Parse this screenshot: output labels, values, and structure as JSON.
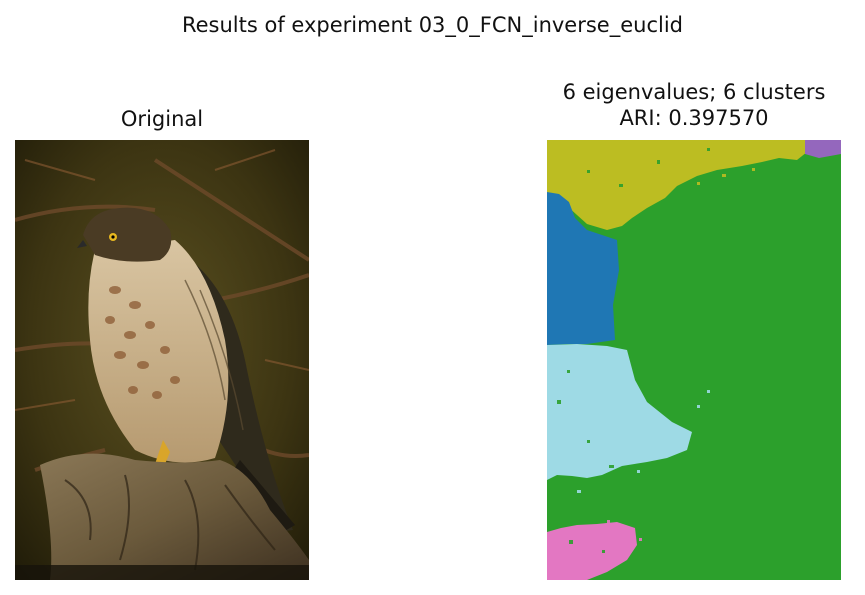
{
  "figure": {
    "suptitle": "Results of experiment 03_0_FCN_inverse_euclid"
  },
  "left_panel": {
    "title": "Original",
    "image_subject": "hawk perched on tree stump"
  },
  "right_panel": {
    "title_line1": "6 eigenvalues; 6 clusters",
    "title_line2": "ARI: 0.397570",
    "clusters": [
      {
        "name": "cluster-olive",
        "color": "#bcbd22"
      },
      {
        "name": "cluster-purple",
        "color": "#9467bd"
      },
      {
        "name": "cluster-blue",
        "color": "#1f77b4"
      },
      {
        "name": "cluster-green",
        "color": "#2ca02c"
      },
      {
        "name": "cluster-lightblue",
        "color": "#9edae5"
      },
      {
        "name": "cluster-pink",
        "color": "#e377c2"
      }
    ]
  }
}
